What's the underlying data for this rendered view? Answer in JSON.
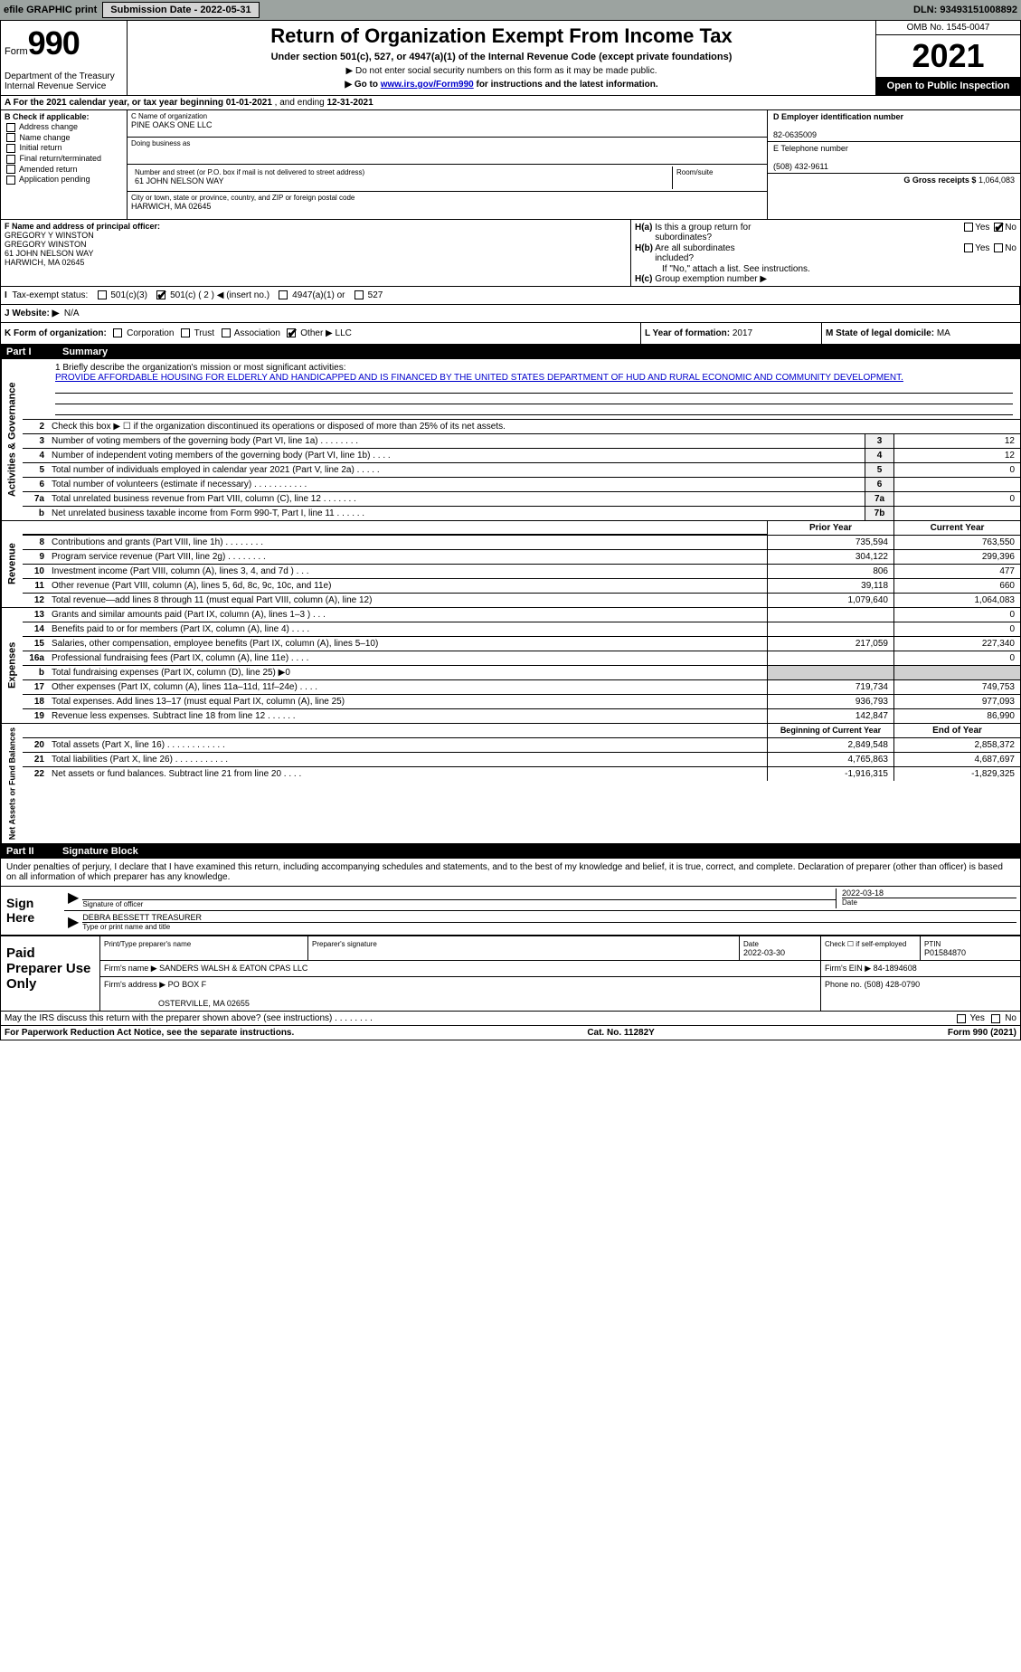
{
  "top_bar": {
    "efile_label": "efile GRAPHIC print",
    "submission_label": "Submission Date - 2022-05-31",
    "dln": "DLN: 93493151008892"
  },
  "header": {
    "form_word": "Form",
    "form_number": "990",
    "title": "Return of Organization Exempt From Income Tax",
    "subtitle1": "Under section 501(c), 527, or 4947(a)(1) of the Internal Revenue Code (except private foundations)",
    "subtitle2": "▶ Do not enter social security numbers on this form as it may be made public.",
    "subtitle3_pre": "▶ Go to ",
    "subtitle3_link": "www.irs.gov/Form990",
    "subtitle3_post": " for instructions and the latest information.",
    "dept": "Department of the Treasury\nInternal Revenue Service",
    "omb": "OMB No. 1545-0047",
    "year": "2021",
    "open_pub": "Open to Public Inspection"
  },
  "row_a": {
    "text_pre": "A For the 2021 calendar year, or tax year beginning ",
    "begin": "01-01-2021",
    "mid": "  , and ending ",
    "end": "12-31-2021"
  },
  "section_b": {
    "label": "B Check if applicable:",
    "items": [
      "Address change",
      "Name change",
      "Initial return",
      "Final return/terminated",
      "Amended return",
      "Application pending"
    ]
  },
  "section_c": {
    "name_label": "C Name of organization",
    "name": "PINE OAKS ONE LLC",
    "dba_label": "Doing business as",
    "dba": "",
    "addr_label": "Number and street (or P.O. box if mail is not delivered to street address)",
    "room_label": "Room/suite",
    "addr": "61 JOHN NELSON WAY",
    "city_label": "City or town, state or province, country, and ZIP or foreign postal code",
    "city": "HARWICH, MA  02645"
  },
  "section_d": {
    "ein_label": "D Employer identification number",
    "ein": "82-0635009",
    "phone_label": "E Telephone number",
    "phone": "(508) 432-9611",
    "gross_label": "G Gross receipts $",
    "gross": "1,064,083"
  },
  "section_f": {
    "label": "F  Name and address of principal officer:",
    "lines": [
      "GREGORY Y WINSTON",
      "GREGORY WINSTON",
      "61 JOHN NELSON WAY",
      "HARWICH, MA  02645"
    ]
  },
  "section_h": {
    "ha": "H(a)  Is this a group return for subordinates?",
    "hb": "H(b)  Are all subordinates included?",
    "hb_note": "If \"No,\" attach a list. See instructions.",
    "hc": "H(c)  Group exemption number ▶",
    "yes": "Yes",
    "no": "No"
  },
  "row_i": {
    "label": "I  Tax-exempt status:",
    "opts": [
      "501(c)(3)",
      "501(c) ( 2 ) ◀ (insert no.)",
      "4947(a)(1) or",
      "527"
    ]
  },
  "row_j": {
    "label": "J Website: ▶",
    "val": "N/A"
  },
  "row_k": {
    "left_label": "K Form of organization:",
    "opts": [
      "Corporation",
      "Trust",
      "Association",
      "Other ▶"
    ],
    "other_val": "LLC",
    "l_label": "L Year of formation:",
    "l_val": "2017",
    "m_label": "M State of legal domicile:",
    "m_val": "MA"
  },
  "part1": {
    "num": "Part I",
    "title": "Summary"
  },
  "mission": {
    "label": "1  Briefly describe the organization's mission or most significant activities:",
    "text": "PROVIDE AFFORDABLE HOUSING FOR ELDERLY AND HANDICAPPED AND IS FINANCED BY THE UNITED STATES DEPARTMENT OF HUD AND RURAL ECONOMIC AND COMMUNITY DEVELOPMENT."
  },
  "vert_labels": {
    "gov": "Activities & Governance",
    "rev": "Revenue",
    "exp": "Expenses",
    "net": "Net Assets or Fund Balances"
  },
  "gov_lines": [
    {
      "n": "2",
      "d": "Check this box ▶ ☐  if the organization discontinued its operations or disposed of more than 25% of its net assets."
    },
    {
      "n": "3",
      "d": "Number of voting members of the governing body (Part VI, line 1a)  .    .    .    .    .    .    .    .",
      "b": "3",
      "v": "12"
    },
    {
      "n": "4",
      "d": "Number of independent voting members of the governing body (Part VI, line 1b)   .    .    .    .",
      "b": "4",
      "v": "12"
    },
    {
      "n": "5",
      "d": "Total number of individuals employed in calendar year 2021 (Part V, line 2a)  .    .    .    .    .",
      "b": "5",
      "v": "0"
    },
    {
      "n": "6",
      "d": "Total number of volunteers (estimate if necessary)    .    .    .    .    .    .    .    .    .    .    .",
      "b": "6",
      "v": ""
    },
    {
      "n": "7a",
      "d": "Total unrelated business revenue from Part VIII, column (C), line 12   .    .    .    .    .    .    .",
      "b": "7a",
      "v": "0"
    },
    {
      "n": "b",
      "d": "Net unrelated business taxable income from Form 990-T, Part I, line 11   .    .    .    .    .    .",
      "b": "7b",
      "v": ""
    }
  ],
  "col_headers": {
    "prior": "Prior Year",
    "current": "Current Year"
  },
  "rev_lines": [
    {
      "n": "8",
      "d": "Contributions and grants (Part VIII, line 1h)   .    .    .    .    .    .    .    .",
      "p": "735,594",
      "c": "763,550"
    },
    {
      "n": "9",
      "d": "Program service revenue (Part VIII, line 2g)   .    .    .    .    .    .    .    .",
      "p": "304,122",
      "c": "299,396"
    },
    {
      "n": "10",
      "d": "Investment income (Part VIII, column (A), lines 3, 4, and 7d )   .    .    .",
      "p": "806",
      "c": "477"
    },
    {
      "n": "11",
      "d": "Other revenue (Part VIII, column (A), lines 5, 6d, 8c, 9c, 10c, and 11e)",
      "p": "39,118",
      "c": "660"
    },
    {
      "n": "12",
      "d": "Total revenue—add lines 8 through 11 (must equal Part VIII, column (A), line 12)",
      "p": "1,079,640",
      "c": "1,064,083"
    }
  ],
  "exp_lines": [
    {
      "n": "13",
      "d": "Grants and similar amounts paid (Part IX, column (A), lines 1–3 )  .    .    .",
      "p": "",
      "c": "0"
    },
    {
      "n": "14",
      "d": "Benefits paid to or for members (Part IX, column (A), line 4)  .    .    .    .",
      "p": "",
      "c": "0"
    },
    {
      "n": "15",
      "d": "Salaries, other compensation, employee benefits (Part IX, column (A), lines 5–10)",
      "p": "217,059",
      "c": "227,340"
    },
    {
      "n": "16a",
      "d": "Professional fundraising fees (Part IX, column (A), line 11e)   .    .    .    .",
      "p": "",
      "c": "0"
    },
    {
      "n": "b",
      "d": "Total fundraising expenses (Part IX, column (D), line 25) ▶0",
      "p": "shade",
      "c": "shade"
    },
    {
      "n": "17",
      "d": "Other expenses (Part IX, column (A), lines 11a–11d, 11f–24e)   .    .    .    .",
      "p": "719,734",
      "c": "749,753"
    },
    {
      "n": "18",
      "d": "Total expenses. Add lines 13–17 (must equal Part IX, column (A), line 25)",
      "p": "936,793",
      "c": "977,093"
    },
    {
      "n": "19",
      "d": "Revenue less expenses. Subtract line 18 from line 12  .    .    .    .    .    .",
      "p": "142,847",
      "c": "86,990"
    }
  ],
  "net_headers": {
    "begin": "Beginning of Current Year",
    "end": "End of Year"
  },
  "net_lines": [
    {
      "n": "20",
      "d": "Total assets (Part X, line 16)  .    .    .    .    .    .    .    .    .    .    .    .",
      "p": "2,849,548",
      "c": "2,858,372"
    },
    {
      "n": "21",
      "d": "Total liabilities (Part X, line 26)   .    .    .    .    .    .    .    .    .    .    .",
      "p": "4,765,863",
      "c": "4,687,697"
    },
    {
      "n": "22",
      "d": "Net assets or fund balances. Subtract line 21 from line 20   .    .    .    .",
      "p": "-1,916,315",
      "c": "-1,829,325"
    }
  ],
  "part2": {
    "num": "Part II",
    "title": "Signature Block"
  },
  "sig_intro": "Under penalties of perjury, I declare that I have examined this return, including accompanying schedules and statements, and to the best of my knowledge and belief, it is true, correct, and complete. Declaration of preparer (other than officer) is based on all information of which preparer has any knowledge.",
  "sign": {
    "label": "Sign Here",
    "sig_label": "Signature of officer",
    "date_label": "Date",
    "date": "2022-03-18",
    "name": "DEBRA BESSETT TREASURER",
    "name_label": "Type or print name and title"
  },
  "prep": {
    "label": "Paid Preparer Use Only",
    "h1": "Print/Type preparer's name",
    "h2": "Preparer's signature",
    "h3": "Date",
    "h3v": "2022-03-30",
    "h4": "Check ☐ if self-employed",
    "h5": "PTIN",
    "h5v": "P01584870",
    "firm_name_label": "Firm's name    ▶",
    "firm_name": "SANDERS WALSH & EATON CPAS LLC",
    "firm_ein_label": "Firm's EIN ▶",
    "firm_ein": "84-1894608",
    "firm_addr_label": "Firm's address ▶",
    "firm_addr1": "PO BOX F",
    "firm_addr2": "OSTERVILLE, MA  02655",
    "firm_phone_label": "Phone no.",
    "firm_phone": "(508) 428-0790"
  },
  "footer": {
    "discuss": "May the IRS discuss this return with the preparer shown above? (see instructions)   .    .    .    .    .    .    .    .",
    "yes": "Yes",
    "no": "No",
    "paperwork": "For Paperwork Reduction Act Notice, see the separate instructions.",
    "cat": "Cat. No. 11282Y",
    "form": "Form 990 (2021)"
  }
}
